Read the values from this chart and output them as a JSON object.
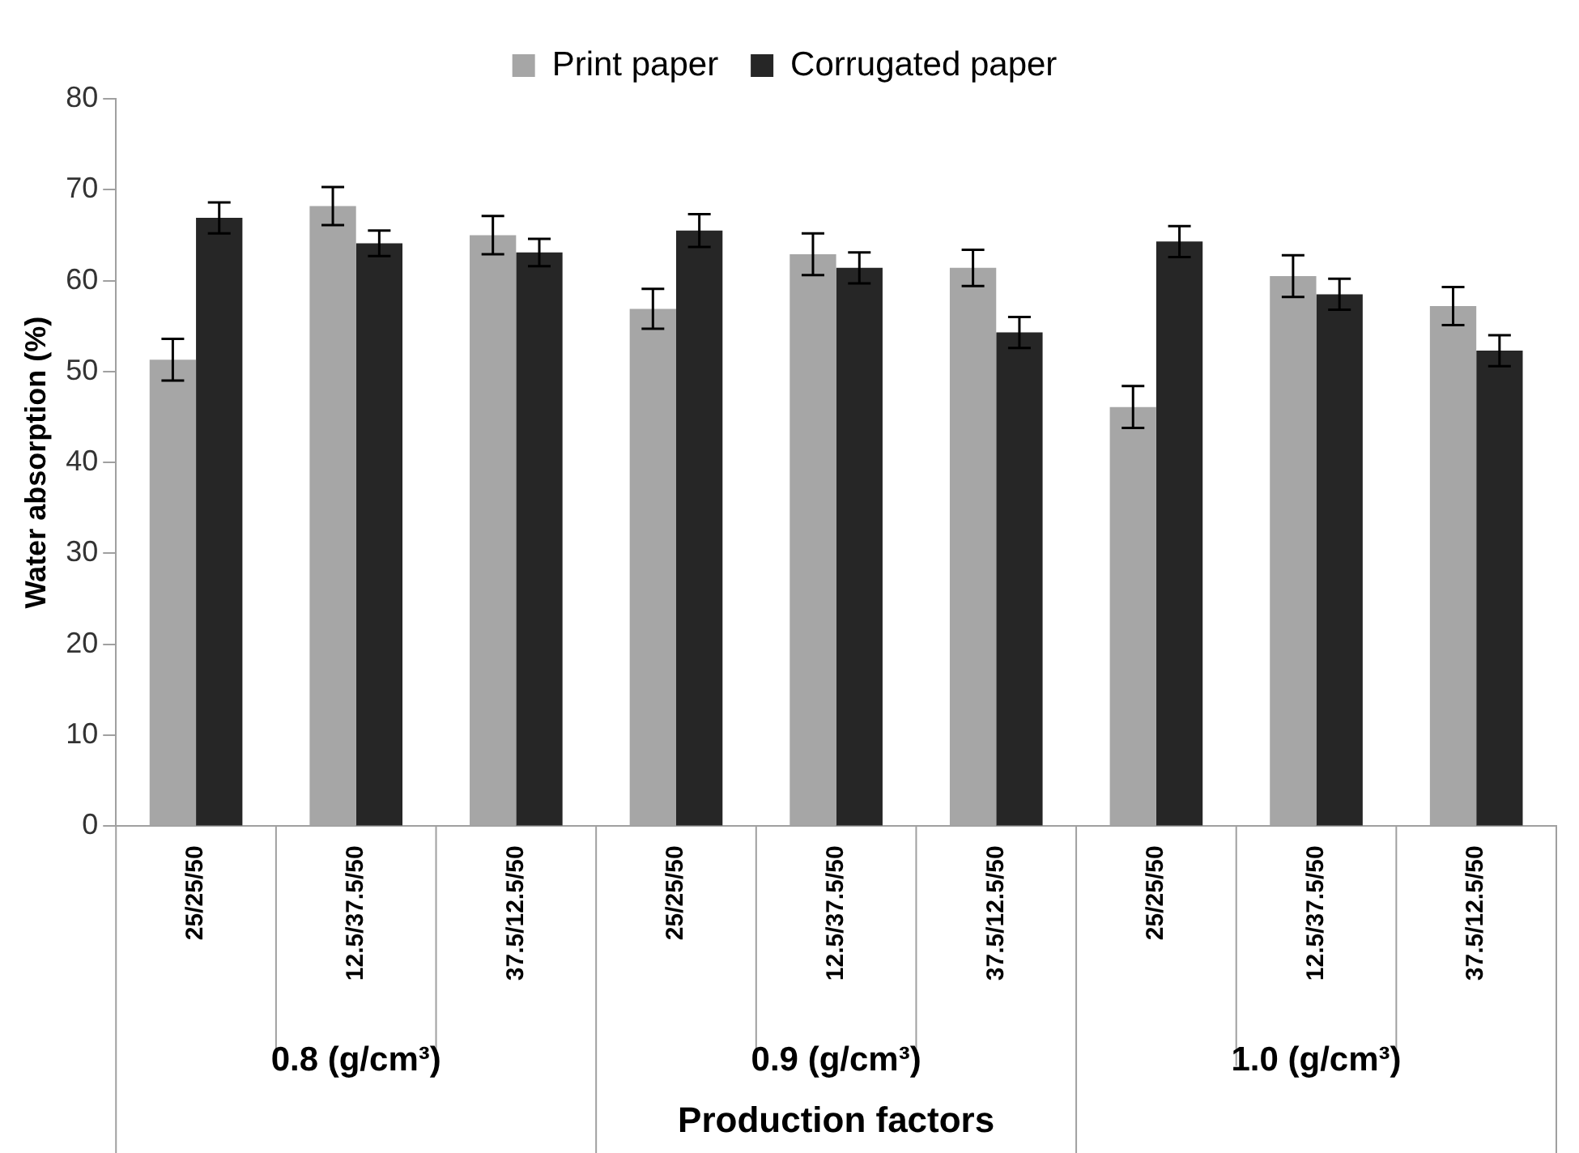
{
  "chart_data": {
    "type": "bar",
    "xlabel": "Production factors",
    "ylabel": "Water absorption (%)",
    "categories": [
      "25/25/50",
      "12.5/37.5/50",
      "37.5/12.5/50",
      "25/25/50",
      "12.5/37.5/50",
      "37.5/12.5/50",
      "25/25/50",
      "12.5/37.5/50",
      "37.5/12.5/50"
    ],
    "series": [
      {
        "name": "Print paper",
        "color": "#a6a6a6",
        "values": [
          51.3,
          68.2,
          65.0,
          56.9,
          62.9,
          61.4,
          46.1,
          60.5,
          57.2
        ],
        "errors": [
          2.3,
          2.1,
          2.1,
          2.2,
          2.3,
          2.0,
          2.3,
          2.3,
          2.1
        ]
      },
      {
        "name": "Corrugated paper",
        "color": "#262626",
        "values": [
          66.9,
          64.1,
          63.1,
          65.5,
          61.4,
          54.3,
          64.3,
          58.5,
          52.3
        ],
        "errors": [
          1.7,
          1.4,
          1.5,
          1.8,
          1.7,
          1.7,
          1.7,
          1.7,
          1.7
        ]
      }
    ],
    "annotations": [
      "0.8 (g/cm³)",
      "0.9 (g/cm³)",
      "1.0 (g/cm³)"
    ],
    "ylim": [
      0,
      80
    ],
    "yticks": [
      0,
      10,
      20,
      30,
      40,
      50,
      60,
      70,
      80
    ],
    "grid": false,
    "legend": "top"
  }
}
